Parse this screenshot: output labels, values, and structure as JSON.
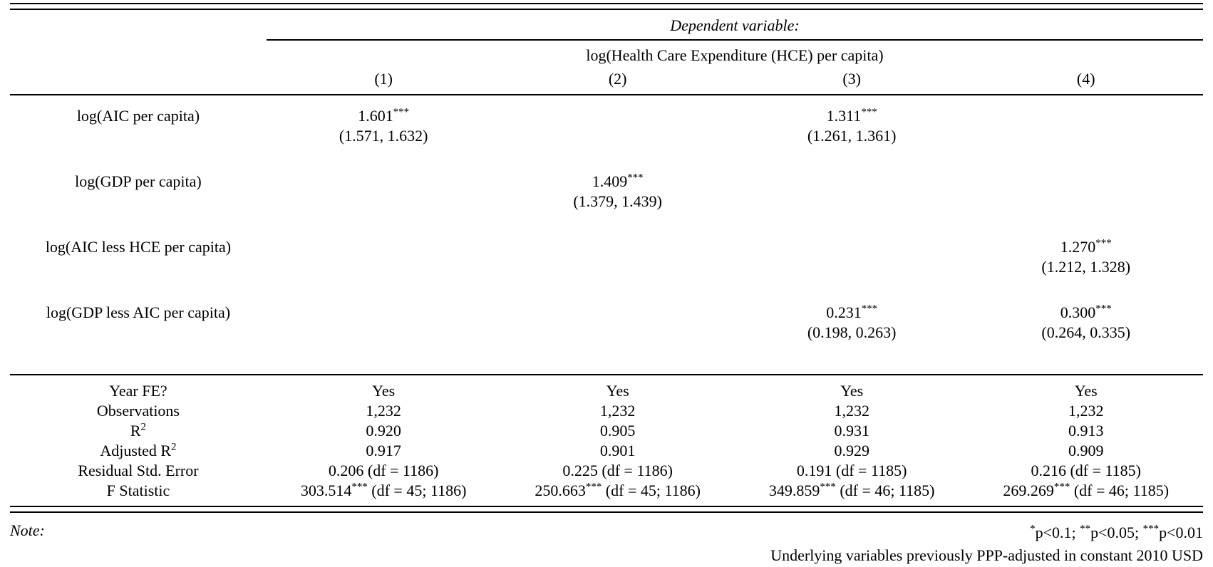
{
  "header": {
    "dependent_variable_label": "Dependent variable:",
    "dependent_variable_name": "log(Health Care Expenditure (HCE) per capita)",
    "column_numbers": [
      "(1)",
      "(2)",
      "(3)",
      "(4)"
    ]
  },
  "coefficients": [
    {
      "label": "log(AIC per capita)",
      "estimates": [
        [
          {
            "t": "1.601"
          },
          {
            "t": "***",
            "sup": true
          }
        ],
        null,
        [
          {
            "t": "1.311"
          },
          {
            "t": "***",
            "sup": true
          }
        ],
        null
      ],
      "confidence_intervals": [
        "(1.571, 1.632)",
        "",
        "(1.261, 1.361)",
        ""
      ]
    },
    {
      "label": "log(GDP per capita)",
      "estimates": [
        null,
        [
          {
            "t": "1.409"
          },
          {
            "t": "***",
            "sup": true
          }
        ],
        null,
        null
      ],
      "confidence_intervals": [
        "",
        "(1.379, 1.439)",
        "",
        ""
      ]
    },
    {
      "label": "log(AIC less HCE per capita)",
      "estimates": [
        null,
        null,
        null,
        [
          {
            "t": "1.270"
          },
          {
            "t": "***",
            "sup": true
          }
        ]
      ],
      "confidence_intervals": [
        "",
        "",
        "",
        "(1.212, 1.328)"
      ]
    },
    {
      "label": "log(GDP less AIC per capita)",
      "estimates": [
        null,
        null,
        [
          {
            "t": "0.231"
          },
          {
            "t": "***",
            "sup": true
          }
        ],
        [
          {
            "t": "0.300"
          },
          {
            "t": "***",
            "sup": true
          }
        ]
      ],
      "confidence_intervals": [
        "",
        "",
        "(0.198, 0.263)",
        "(0.264, 0.335)"
      ]
    }
  ],
  "stats": [
    {
      "label": [
        {
          "t": "Year FE?"
        }
      ],
      "values": [
        [
          {
            "t": "Yes"
          }
        ],
        [
          {
            "t": "Yes"
          }
        ],
        [
          {
            "t": "Yes"
          }
        ],
        [
          {
            "t": "Yes"
          }
        ]
      ]
    },
    {
      "label": [
        {
          "t": "Observations"
        }
      ],
      "values": [
        [
          {
            "t": "1,232"
          }
        ],
        [
          {
            "t": "1,232"
          }
        ],
        [
          {
            "t": "1,232"
          }
        ],
        [
          {
            "t": "1,232"
          }
        ]
      ]
    },
    {
      "label": [
        {
          "t": "R"
        },
        {
          "t": "2",
          "sup": true
        }
      ],
      "values": [
        [
          {
            "t": "0.920"
          }
        ],
        [
          {
            "t": "0.905"
          }
        ],
        [
          {
            "t": "0.931"
          }
        ],
        [
          {
            "t": "0.913"
          }
        ]
      ]
    },
    {
      "label": [
        {
          "t": "Adjusted R"
        },
        {
          "t": "2",
          "sup": true
        }
      ],
      "values": [
        [
          {
            "t": "0.917"
          }
        ],
        [
          {
            "t": "0.901"
          }
        ],
        [
          {
            "t": "0.929"
          }
        ],
        [
          {
            "t": "0.909"
          }
        ]
      ]
    },
    {
      "label": [
        {
          "t": "Residual Std. Error"
        }
      ],
      "values": [
        [
          {
            "t": "0.206 (df = 1186)"
          }
        ],
        [
          {
            "t": "0.225 (df = 1186)"
          }
        ],
        [
          {
            "t": "0.191 (df = 1185)"
          }
        ],
        [
          {
            "t": "0.216 (df = 1185)"
          }
        ]
      ]
    },
    {
      "label": [
        {
          "t": "F Statistic"
        }
      ],
      "values": [
        [
          {
            "t": "303.514"
          },
          {
            "t": "***",
            "sup": true
          },
          {
            "t": " (df = 45; 1186)"
          }
        ],
        [
          {
            "t": "250.663"
          },
          {
            "t": "***",
            "sup": true
          },
          {
            "t": " (df = 45; 1186)"
          }
        ],
        [
          {
            "t": "349.859"
          },
          {
            "t": "***",
            "sup": true
          },
          {
            "t": " (df = 46; 1185)"
          }
        ],
        [
          {
            "t": "269.269"
          },
          {
            "t": "***",
            "sup": true
          },
          {
            "t": " (df = 46; 1185)"
          }
        ]
      ]
    }
  ],
  "note": {
    "label": "Note:",
    "significance": [
      {
        "t": "*",
        "sup": true
      },
      {
        "t": "p<0.1; "
      },
      {
        "t": "**",
        "sup": true
      },
      {
        "t": "p<0.05; "
      },
      {
        "t": "***",
        "sup": true
      },
      {
        "t": "p<0.01"
      }
    ],
    "subnote": "Underlying variables previously PPP-adjusted in constant 2010 USD"
  },
  "colors": {
    "text": "#000000",
    "background": "#ffffff",
    "rule": "#000000"
  }
}
